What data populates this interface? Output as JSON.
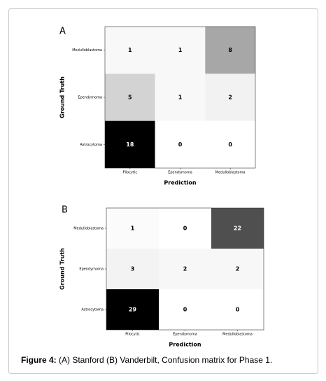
{
  "chart_data": [
    {
      "type": "heatmap",
      "panel": "A",
      "xlabel": "Prediction",
      "ylabel": "Ground Truth",
      "x_categories": [
        "Pilocytic",
        "Ependymoma",
        "Medulloblastoma"
      ],
      "y_categories": [
        "Medulloblastoma",
        "Ependymoma",
        "Astrocytoma"
      ],
      "values": [
        [
          1,
          1,
          8
        ],
        [
          5,
          1,
          2
        ],
        [
          18,
          0,
          0
        ]
      ],
      "cmap": [
        "#ffffff",
        "#f0f0f0",
        "#d9d9d9",
        "#bdbdbd",
        "#969696",
        "#737373",
        "#525252",
        "#252525",
        "#000000"
      ]
    },
    {
      "type": "heatmap",
      "panel": "B",
      "xlabel": "Prediction",
      "ylabel": "Ground Truth",
      "x_categories": [
        "Pilocytic",
        "Ependymoma",
        "Medulloblastoma"
      ],
      "y_categories": [
        "Medulloblastoma",
        "Ependymoma",
        "Astrocytoma"
      ],
      "values": [
        [
          1,
          0,
          22
        ],
        [
          3,
          2,
          2
        ],
        [
          29,
          0,
          0
        ]
      ],
      "cmap": [
        "#ffffff",
        "#f0f0f0",
        "#d9d9d9",
        "#bdbdbd",
        "#969696",
        "#737373",
        "#525252",
        "#252525",
        "#000000"
      ]
    }
  ],
  "caption": {
    "label": "Figure 4:",
    "text": "(A) Stanford (B) Vanderbilt, Confusion matrix for Phase 1."
  }
}
